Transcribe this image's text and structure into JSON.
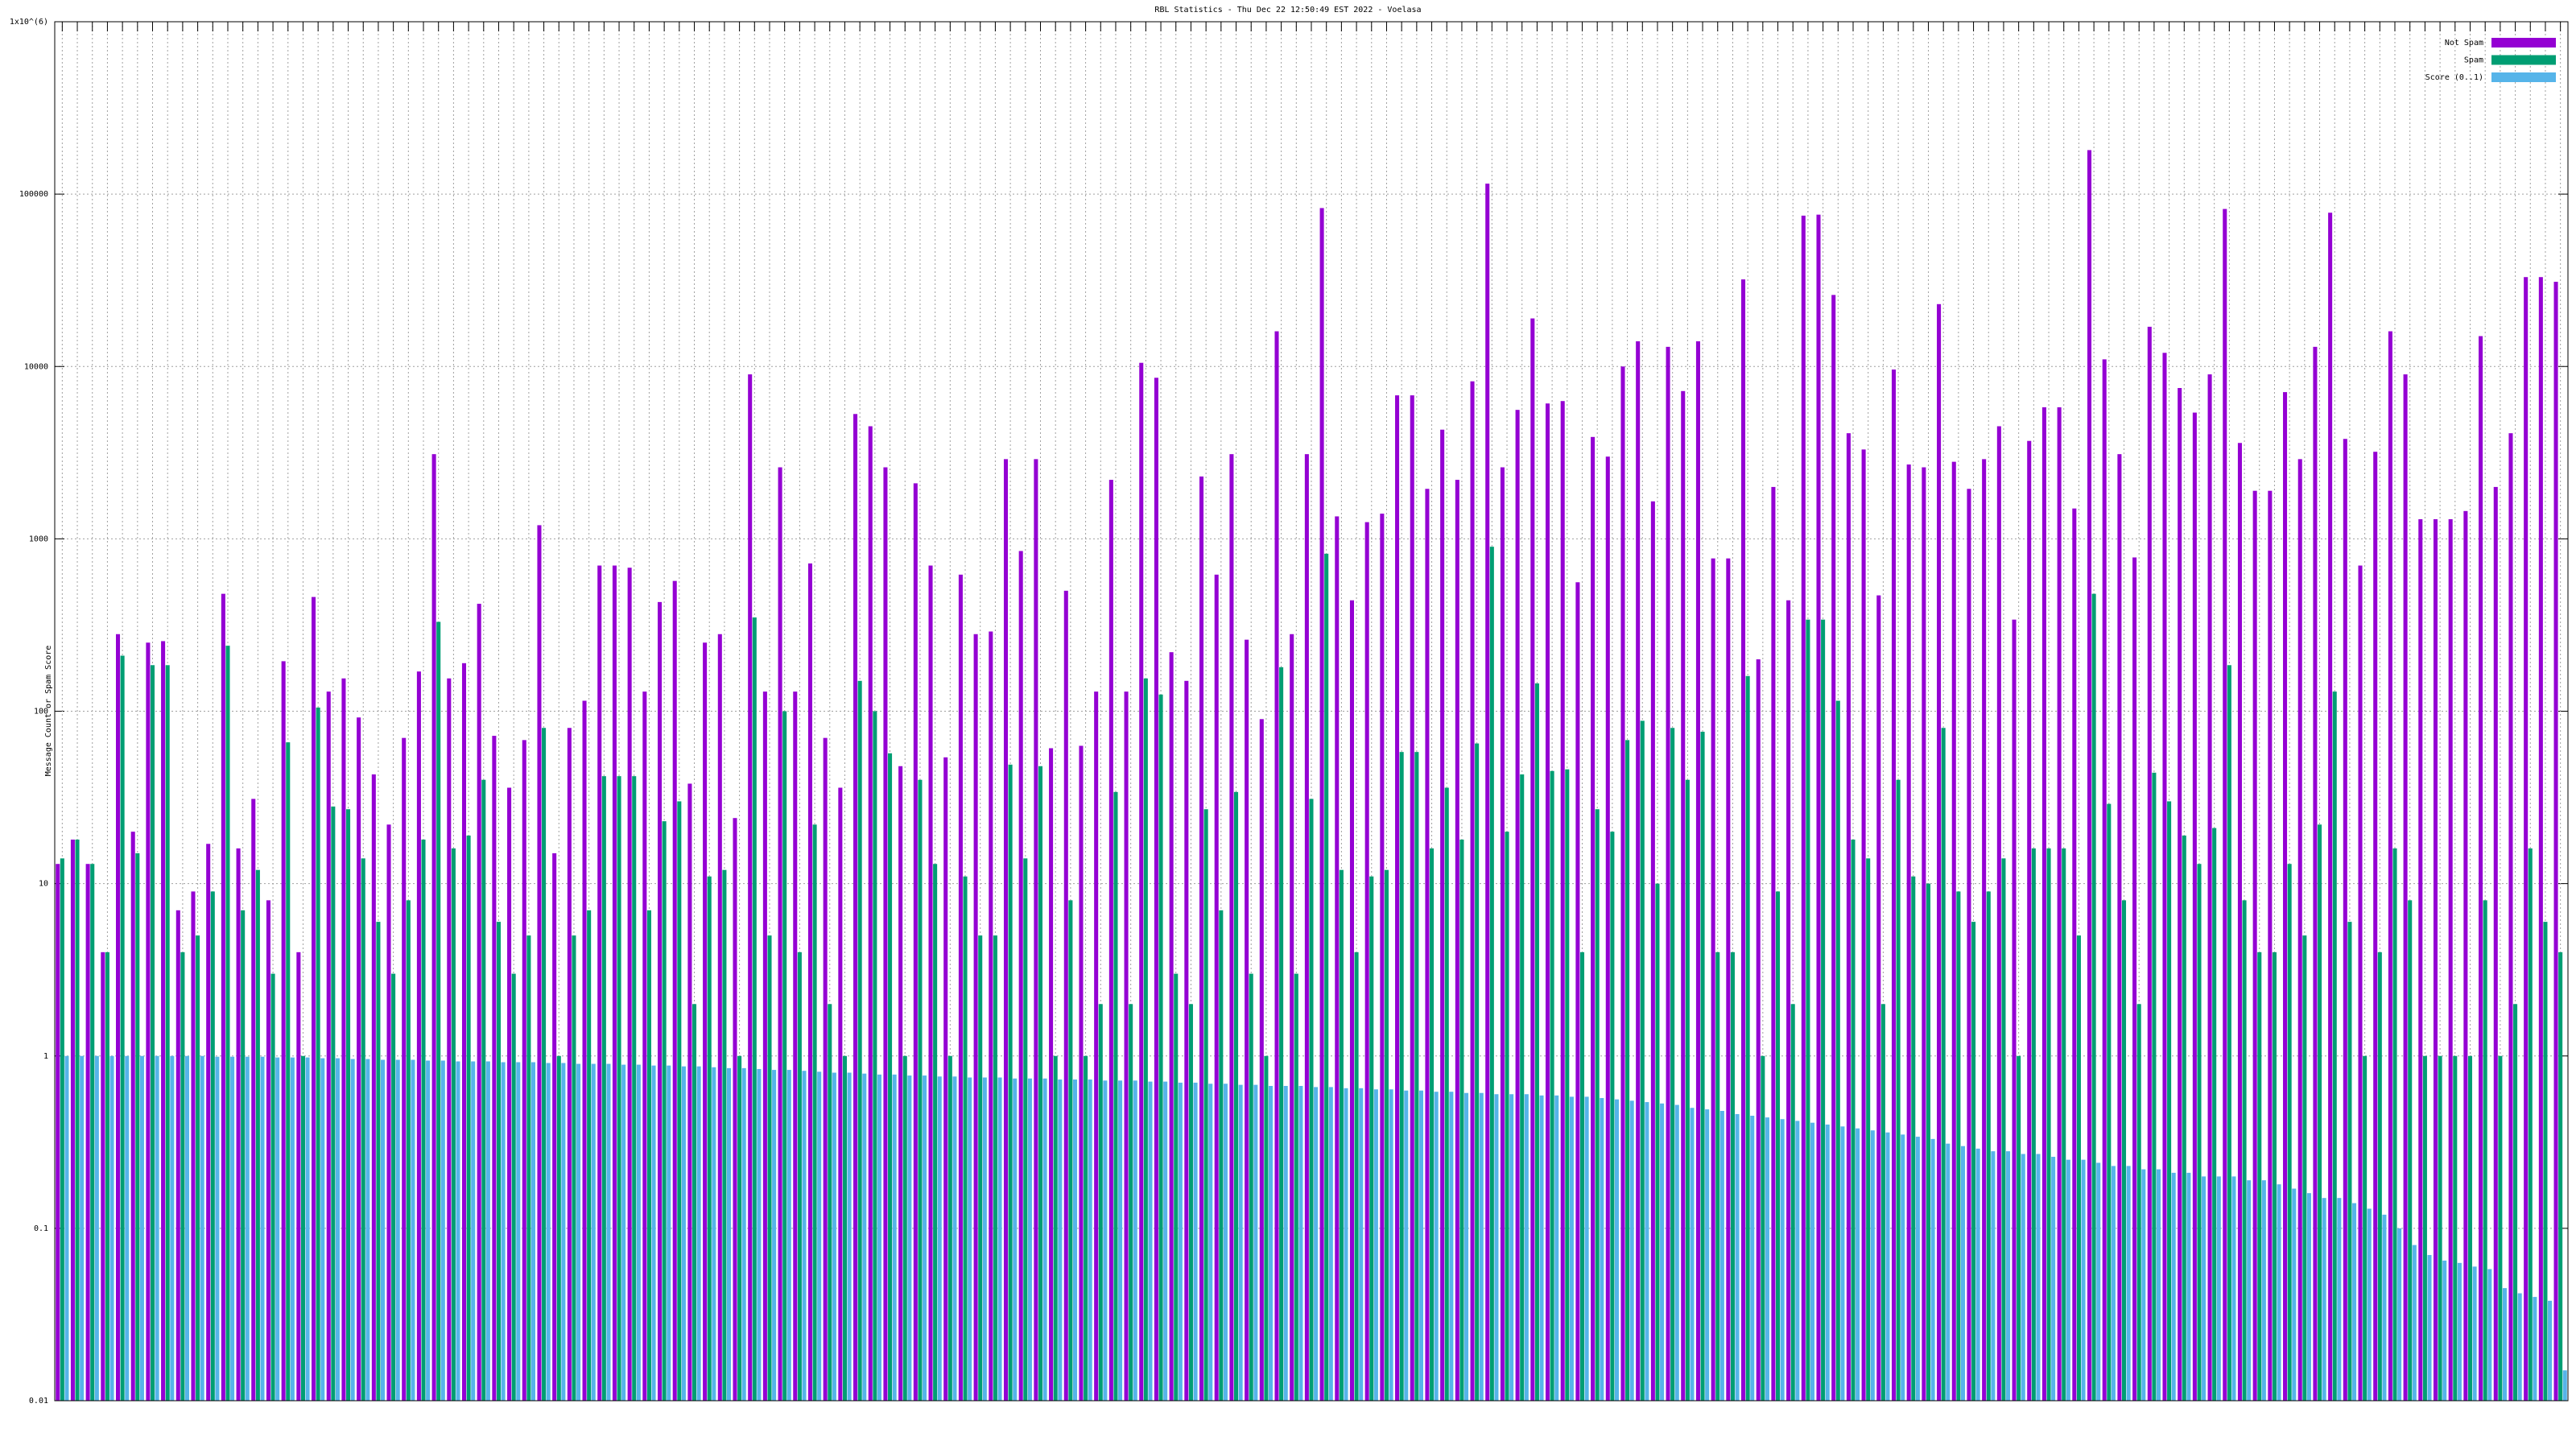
{
  "chart_data": {
    "type": "bar",
    "title": "RBL Statistics - Thu Dec 22 12:50:49 EST 2022 - Voelasa",
    "y_label": "Message Count or Spam Score",
    "log_scale": true,
    "grid": true,
    "legend": "top-right",
    "ylim": [
      0.01,
      1000000
    ],
    "yticks": [
      0.01,
      0.1,
      1,
      10,
      100,
      1000,
      10000,
      100000,
      {
        "value": 1000000,
        "label": "1x10^(6)"
      }
    ],
    "categories": [
      null,
      null,
      null,
      null,
      null,
      null,
      null,
      null,
      null,
      null,
      null,
      null,
      null,
      null,
      null,
      null,
      null,
      null,
      null,
      null,
      null,
      null,
      null,
      null,
      null,
      null,
      null,
      null,
      null,
      null,
      null,
      null,
      null,
      null,
      null,
      null,
      null,
      null,
      null,
      null,
      null,
      null,
      null,
      null,
      null,
      null,
      null,
      null,
      null,
      null,
      null,
      null,
      null,
      null,
      null,
      null,
      null,
      null,
      null,
      null,
      null,
      null,
      null,
      null,
      null,
      null,
      null,
      null,
      null,
      null,
      null,
      null,
      null,
      null,
      null,
      null,
      null,
      null,
      null,
      null,
      null,
      null,
      null,
      null,
      null,
      null,
      null,
      null,
      null,
      null,
      null,
      null,
      null,
      null,
      null,
      null,
      null,
      null,
      null,
      null,
      null,
      null,
      null,
      null,
      null,
      null,
      null,
      null,
      null,
      null,
      null,
      null,
      null,
      null,
      null,
      null,
      null,
      null,
      null,
      null,
      null,
      null,
      null,
      null,
      null,
      null,
      null,
      null,
      null,
      null,
      null,
      null,
      null,
      null,
      null,
      null,
      null,
      null,
      null,
      null,
      null,
      null,
      null,
      null,
      null,
      null,
      null,
      null,
      null,
      null,
      null,
      null,
      null,
      null,
      null,
      null,
      null,
      null,
      null,
      null,
      null,
      null,
      null,
      null,
      null,
      null,
      null
    ],
    "series": [
      {
        "name": "Not Spam",
        "color": "#9400d3",
        "values": [
          13,
          18,
          13,
          4,
          280,
          20,
          250,
          255,
          7,
          9,
          17,
          480,
          16,
          31,
          8,
          195,
          4,
          460,
          130,
          155,
          92,
          43,
          22,
          70,
          170,
          3100,
          155,
          190,
          420,
          72,
          36,
          68,
          1200,
          15,
          80,
          115,
          700,
          700,
          680,
          130,
          430,
          570,
          38,
          250,
          280,
          24,
          9000,
          130,
          2600,
          130,
          720,
          70,
          36,
          5300,
          4500,
          2600,
          48,
          2100,
          700,
          54,
          620,
          280,
          290,
          2900,
          850,
          2900,
          61,
          500,
          63,
          130,
          2200,
          130,
          10500,
          8600,
          220,
          150,
          2300,
          620,
          3100,
          260,
          90,
          16000,
          280,
          3100,
          83000,
          1350,
          440,
          1250,
          1400,
          6800,
          6800,
          1950,
          4300,
          2200,
          8200,
          115000,
          2600,
          5600,
          19000,
          6100,
          6300,
          560,
          3900,
          3000,
          10000,
          14000,
          1650,
          13000,
          7200,
          14000,
          770,
          770,
          32000,
          200,
          2000,
          440,
          75000,
          76000,
          26000,
          4100,
          3300,
          470,
          9600,
          2700,
          2600,
          23000,
          2800,
          1950,
          2900,
          4500,
          340,
          3700,
          5800,
          5800,
          1500,
          180000,
          11000,
          3100,
          780,
          17000,
          12000,
          7500,
          5400,
          9000,
          82000,
          3600,
          1900,
          1900,
          7100,
          2900,
          13000,
          78000,
          3800,
          700,
          3200,
          16000,
          9000,
          1300,
          1300,
          1300,
          1450,
          15000,
          2000,
          4100,
          33000,
          33000,
          31000
        ]
      },
      {
        "name": "Spam",
        "color": "#009e73",
        "values": [
          14,
          18,
          13,
          4,
          210,
          15,
          185,
          185,
          4,
          5,
          9,
          240,
          7,
          12,
          3,
          66,
          1,
          105,
          28,
          27,
          14,
          6,
          3,
          8,
          18,
          330,
          16,
          19,
          40,
          6,
          3,
          5,
          80,
          1,
          5,
          7,
          42,
          42,
          42,
          7,
          23,
          30,
          2,
          11,
          12,
          1,
          350,
          5,
          100,
          4,
          22,
          2,
          1,
          150,
          100,
          57,
          1,
          40,
          13,
          1,
          11,
          5,
          5,
          49,
          14,
          48,
          1,
          8,
          1,
          2,
          34,
          2,
          155,
          125,
          3,
          2,
          27,
          7,
          34,
          3,
          1,
          180,
          3,
          31,
          820,
          12,
          4,
          11,
          12,
          58,
          58,
          16,
          36,
          18,
          65,
          900,
          20,
          43,
          145,
          45,
          46,
          4,
          27,
          20,
          68,
          88,
          10,
          80,
          40,
          76,
          4,
          4,
          160,
          1,
          9,
          2,
          340,
          340,
          115,
          18,
          14,
          2,
          40,
          11,
          10,
          80,
          9,
          6,
          9,
          14,
          1,
          16,
          16,
          16,
          5,
          480,
          29,
          8,
          2,
          44,
          30,
          19,
          13,
          21,
          185,
          8,
          4,
          4,
          13,
          5,
          22,
          130,
          6,
          1,
          4,
          16,
          8,
          1,
          1,
          1,
          1,
          8,
          1,
          2,
          16,
          6,
          4
        ]
      },
      {
        "name": "Score (0..1)",
        "color": "#56b4e9",
        "values": [
          1,
          1,
          1,
          1,
          1,
          1,
          1,
          1,
          1,
          1,
          0.99,
          0.99,
          0.99,
          0.99,
          0.98,
          0.98,
          0.98,
          0.97,
          0.97,
          0.96,
          0.96,
          0.95,
          0.95,
          0.95,
          0.94,
          0.94,
          0.93,
          0.93,
          0.93,
          0.92,
          0.92,
          0.92,
          0.91,
          0.91,
          0.9,
          0.9,
          0.9,
          0.89,
          0.89,
          0.88,
          0.88,
          0.87,
          0.87,
          0.86,
          0.85,
          0.85,
          0.84,
          0.83,
          0.83,
          0.82,
          0.81,
          0.8,
          0.8,
          0.79,
          0.78,
          0.78,
          0.77,
          0.77,
          0.76,
          0.76,
          0.75,
          0.75,
          0.75,
          0.74,
          0.74,
          0.74,
          0.73,
          0.73,
          0.73,
          0.72,
          0.72,
          0.72,
          0.71,
          0.71,
          0.7,
          0.7,
          0.69,
          0.69,
          0.68,
          0.68,
          0.67,
          0.67,
          0.67,
          0.66,
          0.66,
          0.65,
          0.65,
          0.64,
          0.64,
          0.63,
          0.63,
          0.62,
          0.62,
          0.61,
          0.61,
          0.6,
          0.6,
          0.6,
          0.59,
          0.59,
          0.58,
          0.58,
          0.57,
          0.56,
          0.55,
          0.54,
          0.53,
          0.52,
          0.5,
          0.49,
          0.48,
          0.46,
          0.45,
          0.44,
          0.43,
          0.42,
          0.41,
          0.4,
          0.39,
          0.38,
          0.37,
          0.36,
          0.35,
          0.34,
          0.33,
          0.31,
          0.3,
          0.29,
          0.28,
          0.28,
          0.27,
          0.27,
          0.26,
          0.25,
          0.25,
          0.24,
          0.23,
          0.23,
          0.22,
          0.22,
          0.21,
          0.21,
          0.2,
          0.2,
          0.2,
          0.19,
          0.19,
          0.18,
          0.17,
          0.16,
          0.15,
          0.15,
          0.14,
          0.13,
          0.12,
          0.1,
          0.08,
          0.07,
          0.065,
          0.063,
          0.06,
          0.058,
          0.045,
          0.042,
          0.04,
          0.038,
          0.015
        ]
      }
    ]
  }
}
